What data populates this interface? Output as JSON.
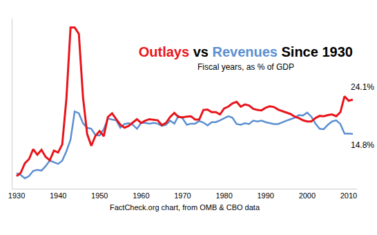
{
  "chart_data": {
    "type": "line",
    "title": "Outlays vs Revenues Since 1930",
    "subtitle": "Fiscal years, as % of GDP",
    "xlabel": "FactCheck.org chart, from OMB & CBO data",
    "x": [
      1930,
      1931,
      1932,
      1933,
      1934,
      1935,
      1936,
      1937,
      1938,
      1939,
      1940,
      1941,
      1942,
      1943,
      1944,
      1945,
      1946,
      1947,
      1948,
      1949,
      1950,
      1951,
      1952,
      1953,
      1954,
      1955,
      1956,
      1957,
      1958,
      1959,
      1960,
      1961,
      1962,
      1963,
      1964,
      1965,
      1966,
      1967,
      1968,
      1969,
      1970,
      1971,
      1972,
      1973,
      1974,
      1975,
      1976,
      1977,
      1978,
      1979,
      1980,
      1981,
      1982,
      1983,
      1984,
      1985,
      1986,
      1987,
      1988,
      1989,
      1990,
      1991,
      1992,
      1993,
      1994,
      1995,
      1996,
      1997,
      1998,
      1999,
      2000,
      2001,
      2002,
      2003,
      2004,
      2005,
      2006,
      2007,
      2008,
      2009,
      2010,
      2011
    ],
    "series": [
      {
        "name": "Outlays",
        "color": "#e8141b",
        "values": [
          3.4,
          4.3,
          6.9,
          8.0,
          10.7,
          9.2,
          10.5,
          8.6,
          7.7,
          10.3,
          9.8,
          12.0,
          24.3,
          43.6,
          43.6,
          41.9,
          24.8,
          14.8,
          11.6,
          14.3,
          15.6,
          14.2,
          19.4,
          20.4,
          18.8,
          17.3,
          16.5,
          17.0,
          17.9,
          18.8,
          17.8,
          18.4,
          18.8,
          18.6,
          18.5,
          17.2,
          17.8,
          19.4,
          20.5,
          19.4,
          19.3,
          19.5,
          19.6,
          18.7,
          18.7,
          21.3,
          21.4,
          20.7,
          20.7,
          20.1,
          21.7,
          22.2,
          23.1,
          23.5,
          22.2,
          22.8,
          22.5,
          21.6,
          21.3,
          21.2,
          21.9,
          22.3,
          22.1,
          21.4,
          21.0,
          20.6,
          20.2,
          19.5,
          19.1,
          18.5,
          18.2,
          18.2,
          19.1,
          19.7,
          19.6,
          19.9,
          20.1,
          19.6,
          20.7,
          25.0,
          23.8,
          24.1
        ]
      },
      {
        "name": "Revenues",
        "color": "#5b8fd0",
        "values": [
          4.2,
          3.7,
          2.8,
          3.4,
          4.8,
          5.1,
          4.9,
          6.1,
          7.6,
          7.1,
          6.7,
          7.6,
          10.1,
          13.3,
          20.9,
          20.4,
          17.7,
          16.5,
          16.2,
          14.5,
          14.4,
          16.1,
          19.0,
          18.7,
          18.5,
          16.5,
          17.5,
          17.7,
          17.3,
          16.2,
          17.8,
          17.8,
          17.6,
          17.8,
          17.6,
          17.0,
          17.3,
          18.4,
          17.6,
          19.7,
          19.0,
          17.3,
          17.6,
          17.6,
          18.3,
          17.9,
          17.1,
          18.0,
          18.0,
          18.5,
          19.0,
          19.6,
          19.2,
          17.5,
          17.3,
          17.7,
          17.5,
          18.4,
          18.2,
          18.4,
          18.0,
          17.8,
          17.5,
          17.5,
          18.0,
          18.4,
          18.8,
          19.2,
          19.9,
          19.8,
          20.6,
          19.5,
          17.6,
          16.2,
          16.1,
          17.3,
          18.2,
          18.5,
          17.5,
          14.9,
          14.9,
          14.8
        ]
      }
    ],
    "annotations": [
      {
        "text": "24.1%",
        "x": 2011,
        "y": 24.1
      },
      {
        "text": "14.8%",
        "x": 2011,
        "y": 14.8
      }
    ],
    "xlim": [
      1929,
      2012
    ],
    "xticks": [
      1930,
      1940,
      1950,
      1960,
      1970,
      1980,
      1990,
      2000,
      2010
    ],
    "ylim": [
      0,
      46
    ],
    "yticks": [],
    "grid": false,
    "tick_labels": "x"
  }
}
